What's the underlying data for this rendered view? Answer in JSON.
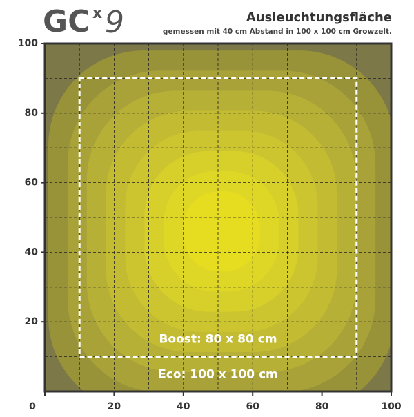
{
  "chart_data": {
    "type": "contour",
    "logo": {
      "main": "GC",
      "sup": "x",
      "num": "9"
    },
    "title": "Ausleuchtungsfläche",
    "subtitle": "gemessen mit 40 cm Abstand in 100 x 100 cm Growzelt.",
    "xlim": [
      0,
      100
    ],
    "ylim": [
      0,
      100
    ],
    "xticks": [
      0,
      20,
      40,
      60,
      80,
      100
    ],
    "yticks": [
      20,
      40,
      60,
      80,
      100
    ],
    "xminor": [
      10,
      30,
      50,
      70,
      90
    ],
    "yminor": [
      10,
      30,
      50,
      70,
      90
    ],
    "grid": true,
    "center": [
      51,
      46
    ],
    "colors": [
      "#7c7848",
      "#989339",
      "#a8a238",
      "#b6b037",
      "#c3bc33",
      "#cdc52f",
      "#d7cf2a",
      "#dfd725",
      "#e6dd20"
    ],
    "boost_area": {
      "label": "Boost: 80 x 80 cm",
      "xlim": [
        10,
        90
      ],
      "ylim": [
        10,
        90
      ]
    },
    "eco_label": "Eco: 100 x 100 cm"
  }
}
